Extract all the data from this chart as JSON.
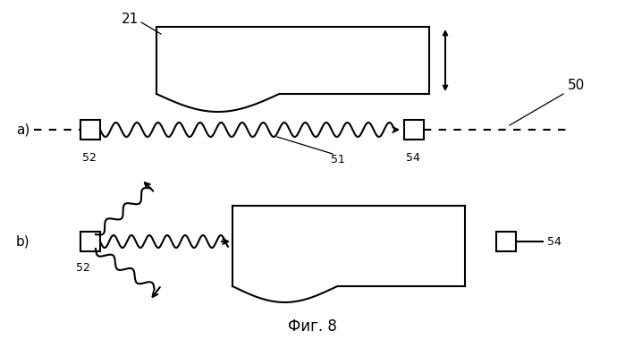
{
  "bg_color": "#ffffff",
  "fig_width": 6.99,
  "fig_height": 3.79,
  "dpi": 100,
  "label_a": "a)",
  "label_b": "b)",
  "label_21": "21",
  "label_50": "50",
  "label_51": "51",
  "label_52": "52",
  "label_54": "54",
  "fig_label": "Фиг. 8",
  "line_color": "#000000",
  "lw": 1.5
}
